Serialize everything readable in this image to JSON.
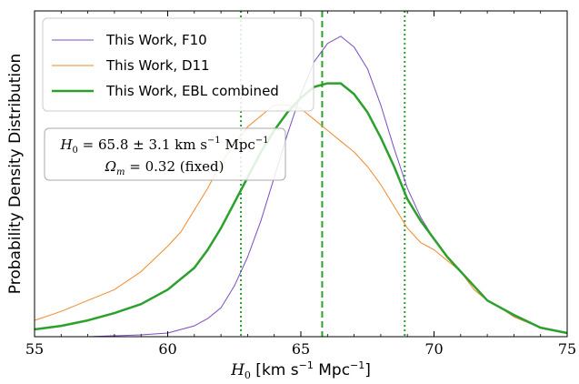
{
  "chart_data": {
    "type": "line",
    "xlabel": "H_0 [km s^-1 Mpc^-1]",
    "ylabel": "Probability Density Distribution",
    "xlim": [
      55,
      75
    ],
    "x_ticks": [
      "55",
      "60",
      "65",
      "70",
      "75"
    ],
    "y_ticks_shown": false,
    "legend_position": "upper-left",
    "series": [
      {
        "name": "This Work, F10",
        "color": "#7d4cc0",
        "style": "thin",
        "x": [
          55,
          57,
          59,
          60,
          61,
          61.5,
          62,
          62.5,
          63,
          63.5,
          64,
          64.5,
          65,
          65.5,
          66,
          66.5,
          67,
          67.5,
          68,
          68.5,
          69,
          69.5,
          70,
          70.5,
          71,
          71.5,
          72,
          72.5,
          73,
          74,
          75
        ],
        "y": [
          0.0,
          0.0,
          0.005,
          0.01,
          0.03,
          0.05,
          0.08,
          0.14,
          0.22,
          0.32,
          0.44,
          0.56,
          0.67,
          0.76,
          0.81,
          0.83,
          0.8,
          0.74,
          0.64,
          0.52,
          0.41,
          0.33,
          0.27,
          0.22,
          0.18,
          0.14,
          0.1,
          0.08,
          0.055,
          0.025,
          0.01
        ]
      },
      {
        "name": "This Work, D11",
        "color": "#ee8a2a",
        "style": "thin",
        "x": [
          55,
          56,
          57,
          58,
          59,
          60,
          60.5,
          61,
          61.5,
          62,
          62.5,
          63,
          63.5,
          64,
          64.5,
          65,
          65.5,
          66,
          66.5,
          67,
          67.5,
          68,
          68.5,
          69,
          69.5,
          70,
          70.5,
          71,
          71.5,
          72,
          72.5,
          73,
          74,
          75
        ],
        "y": [
          0.045,
          0.07,
          0.1,
          0.13,
          0.18,
          0.25,
          0.29,
          0.35,
          0.41,
          0.48,
          0.53,
          0.58,
          0.61,
          0.64,
          0.64,
          0.63,
          0.6,
          0.57,
          0.54,
          0.51,
          0.47,
          0.42,
          0.36,
          0.3,
          0.26,
          0.24,
          0.21,
          0.18,
          0.13,
          0.1,
          0.08,
          0.055,
          0.025,
          0.01
        ]
      },
      {
        "name": "This Work, EBL combined",
        "color": "#2ca02c",
        "style": "thick",
        "x": [
          55,
          56,
          57,
          58,
          59,
          60,
          61,
          61.5,
          62,
          62.5,
          63,
          63.5,
          64,
          64.5,
          65,
          65.5,
          66,
          66.5,
          67,
          67.5,
          68,
          68.5,
          69,
          69.5,
          70,
          70.5,
          71,
          71.5,
          72,
          72.5,
          73,
          74,
          75
        ],
        "y": [
          0.02,
          0.03,
          0.045,
          0.065,
          0.09,
          0.13,
          0.19,
          0.24,
          0.3,
          0.37,
          0.44,
          0.51,
          0.57,
          0.62,
          0.66,
          0.69,
          0.7,
          0.7,
          0.67,
          0.62,
          0.55,
          0.47,
          0.38,
          0.32,
          0.27,
          0.22,
          0.18,
          0.14,
          0.1,
          0.08,
          0.06,
          0.025,
          0.01
        ]
      }
    ],
    "vlines": [
      {
        "x": 65.8,
        "style": "dashed",
        "color": "#2ca02c"
      },
      {
        "x": 62.75,
        "style": "dotted",
        "color": "#2ca02c"
      },
      {
        "x": 68.9,
        "style": "dotted",
        "color": "#2ca02c"
      }
    ],
    "annotation": {
      "line1_symbol": "H",
      "line1_sub": "0",
      "line1_value": " = 65.8 ± 3.1 km s",
      "line1_exp1": "−1",
      "line1_unit2": " Mpc",
      "line1_exp2": "−1",
      "line2_symbol": "Ω",
      "line2_sub": "m",
      "line2_value": " = 0.32 (fixed)"
    },
    "xlabel_parts": {
      "symbol": "H",
      "sub": "0",
      "unit1": " [km s",
      "exp1": "−1",
      "unit2": " Mpc",
      "exp2": "−1",
      "close": "]"
    }
  }
}
